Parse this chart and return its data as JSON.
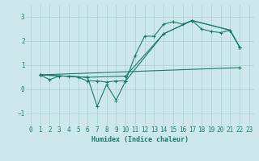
{
  "xlabel": "Humidex (Indice chaleur)",
  "ylabel": "",
  "xlim": [
    -0.5,
    23.5
  ],
  "ylim": [
    -1.5,
    3.5
  ],
  "yticks": [
    -1,
    0,
    1,
    2,
    3
  ],
  "xticks": [
    0,
    1,
    2,
    3,
    4,
    5,
    6,
    7,
    8,
    9,
    10,
    11,
    12,
    13,
    14,
    15,
    16,
    17,
    18,
    19,
    20,
    21,
    22,
    23
  ],
  "bg_color": "#cde8ed",
  "grid_color": "#aacdd5",
  "line_color": "#1a7a6e",
  "lines": [
    {
      "x": [
        1,
        2,
        3,
        4,
        5,
        6,
        7,
        8,
        9,
        10,
        11,
        12,
        13,
        14,
        15,
        16,
        17,
        18,
        19,
        20,
        21,
        22
      ],
      "y": [
        0.6,
        0.4,
        0.55,
        0.55,
        0.5,
        0.35,
        0.35,
        0.3,
        0.35,
        0.35,
        1.4,
        2.2,
        2.2,
        2.7,
        2.8,
        2.7,
        2.85,
        2.5,
        2.4,
        2.35,
        2.45,
        1.75
      ]
    },
    {
      "x": [
        1,
        6,
        10,
        14,
        17,
        21,
        22
      ],
      "y": [
        0.6,
        0.5,
        0.55,
        2.3,
        2.85,
        2.45,
        1.75
      ]
    },
    {
      "x": [
        1,
        6,
        7,
        8,
        9,
        10,
        14,
        17,
        21,
        22
      ],
      "y": [
        0.6,
        0.5,
        -0.7,
        0.2,
        -0.45,
        0.35,
        2.3,
        2.85,
        2.45,
        1.75
      ]
    },
    {
      "x": [
        1,
        22
      ],
      "y": [
        0.6,
        0.9
      ]
    }
  ]
}
